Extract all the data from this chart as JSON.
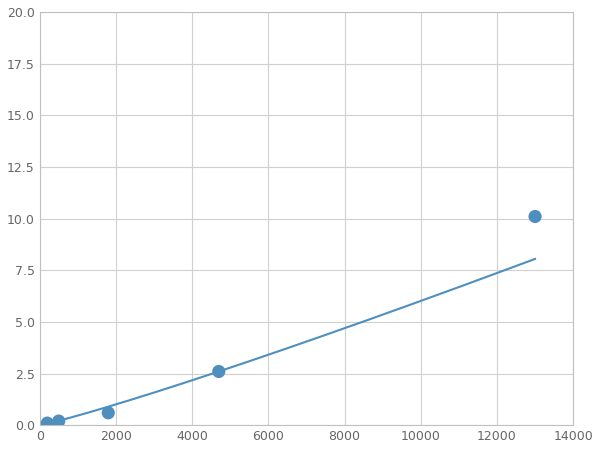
{
  "x": [
    200,
    500,
    1800,
    4700,
    13000
  ],
  "y": [
    0.1,
    0.2,
    0.6,
    2.6,
    10.1
  ],
  "line_color": "#4f8fbf",
  "marker_color": "#4f8fbf",
  "marker_size": 6,
  "xlim": [
    0,
    14000
  ],
  "ylim": [
    0,
    20
  ],
  "xticks": [
    0,
    2000,
    4000,
    6000,
    8000,
    10000,
    12000,
    14000
  ],
  "yticks": [
    0.0,
    2.5,
    5.0,
    7.5,
    10.0,
    12.5,
    15.0,
    17.5,
    20.0
  ],
  "grid": true,
  "background_color": "#ffffff",
  "figure_bg": "#ffffff"
}
